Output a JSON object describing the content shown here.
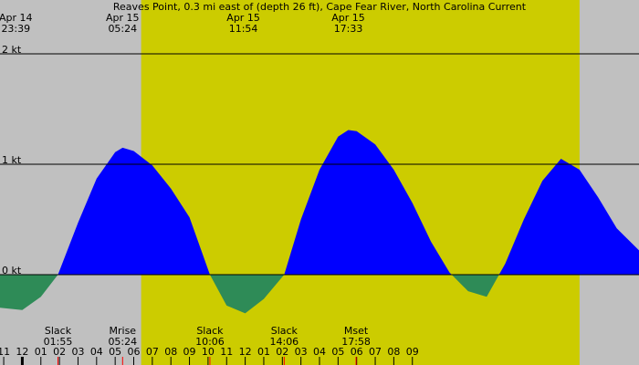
{
  "chart_data": {
    "type": "area",
    "title": "Reaves Point, 0.3 mi east of (depth 26 ft), Cape Fear River, North Carolina Current",
    "x_range_hours": [
      -1.2,
      33.2
    ],
    "ylim": [
      -0.9,
      2.5
    ],
    "y_ticks": [
      {
        "value": 0,
        "label": "0 kt"
      },
      {
        "value": 1,
        "label": "1 kt"
      },
      {
        "value": 2,
        "label": "2 kt"
      }
    ],
    "daylight_hours": [
      6.4,
      30.0
    ],
    "series": [
      {
        "x": [
          -1.2,
          0.0,
          1.0,
          1.92,
          3.0,
          4.0,
          5.0,
          5.4,
          6.0,
          7.0,
          8.0,
          9.0,
          10.1,
          11.0,
          12.0,
          13.0,
          14.1,
          15.0,
          16.0,
          17.0,
          17.55,
          18.0,
          19.0,
          20.0,
          21.0,
          22.0,
          23.0,
          24.0,
          25.0,
          26.0,
          27.0,
          28.0,
          29.0,
          30.0,
          31.0,
          32.0,
          33.2
        ],
        "y": [
          -0.3,
          -0.32,
          -0.2,
          0.0,
          0.47,
          0.87,
          1.11,
          1.15,
          1.12,
          0.99,
          0.78,
          0.52,
          0.0,
          -0.28,
          -0.35,
          -0.22,
          0.0,
          0.5,
          0.95,
          1.25,
          1.31,
          1.3,
          1.18,
          0.95,
          0.65,
          0.3,
          0.02,
          -0.15,
          -0.2,
          0.1,
          0.5,
          0.85,
          1.05,
          0.95,
          0.7,
          0.42,
          0.22
        ]
      }
    ],
    "top_labels": [
      {
        "hour": -0.35,
        "line1": "Apr 14",
        "line2": "23:39"
      },
      {
        "hour": 5.4,
        "line1": "Apr 15",
        "line2": "05:24"
      },
      {
        "hour": 11.9,
        "line1": "Apr 15",
        "line2": "11:54"
      },
      {
        "hour": 17.55,
        "line1": "Apr 15",
        "line2": "17:33"
      }
    ],
    "bottom_labels": [
      {
        "hour": 1.92,
        "line1": "Slack",
        "line2": "01:55"
      },
      {
        "hour": 5.4,
        "line1": "Mrise",
        "line2": "05:24"
      },
      {
        "hour": 10.1,
        "line1": "Slack",
        "line2": "10:06"
      },
      {
        "hour": 14.1,
        "line1": "Slack",
        "line2": "14:06"
      },
      {
        "hour": 17.97,
        "line1": "Mset",
        "line2": "17:58"
      }
    ],
    "event_ticks": [
      1.92,
      5.4,
      10.1,
      14.1,
      17.97
    ],
    "hour_ticks": [
      {
        "hour": -1,
        "label": "11"
      },
      {
        "hour": 0,
        "label": "12"
      },
      {
        "hour": 1,
        "label": "01"
      },
      {
        "hour": 2,
        "label": "02"
      },
      {
        "hour": 3,
        "label": "03"
      },
      {
        "hour": 4,
        "label": "04"
      },
      {
        "hour": 5,
        "label": "05"
      },
      {
        "hour": 6,
        "label": "06"
      },
      {
        "hour": 7,
        "label": "07"
      },
      {
        "hour": 8,
        "label": "08"
      },
      {
        "hour": 9,
        "label": "09"
      },
      {
        "hour": 10,
        "label": "10"
      },
      {
        "hour": 11,
        "label": "11"
      },
      {
        "hour": 12,
        "label": "12"
      },
      {
        "hour": 13,
        "label": "01"
      },
      {
        "hour": 14,
        "label": "02"
      },
      {
        "hour": 15,
        "label": "03"
      },
      {
        "hour": 16,
        "label": "04"
      },
      {
        "hour": 17,
        "label": "05"
      },
      {
        "hour": 18,
        "label": "06"
      },
      {
        "hour": 19,
        "label": "07"
      },
      {
        "hour": 20,
        "label": "08"
      },
      {
        "hour": 21,
        "label": "09"
      }
    ],
    "colors": {
      "background": "#c0c0c0",
      "daylight": "#cccc00",
      "flood": "#0000ff",
      "ebb": "#2e8b57",
      "event_tick": "#ff0000"
    }
  }
}
